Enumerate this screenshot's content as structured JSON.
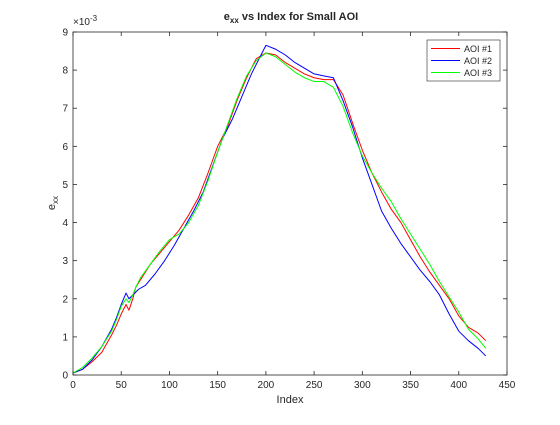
{
  "chart_data": {
    "type": "line",
    "title_main": "e",
    "title_sub": "xx",
    "title_rest": " vs Index for Small AOI",
    "xlabel": "Index",
    "ylabel_main": "e",
    "ylabel_sub": "xx",
    "y_exponent_prefix": "×10",
    "y_exponent_power": "-3",
    "xlim": [
      0,
      450
    ],
    "ylim": [
      0,
      9
    ],
    "xticks": [
      0,
      50,
      100,
      150,
      200,
      250,
      300,
      350,
      400,
      450
    ],
    "yticks": [
      0,
      1,
      2,
      3,
      4,
      5,
      6,
      7,
      8,
      9
    ],
    "xtick_labels": [
      "0",
      "50",
      "100",
      "150",
      "200",
      "250",
      "300",
      "350",
      "400",
      "450"
    ],
    "ytick_labels": [
      "0",
      "1",
      "2",
      "3",
      "4",
      "5",
      "6",
      "7",
      "8",
      "9"
    ],
    "grid": false,
    "legend_position": "top-right",
    "series": [
      {
        "name": "AOI #1",
        "color": "#ff0000",
        "points": [
          [
            0,
            0.05
          ],
          [
            10,
            0.15
          ],
          [
            20,
            0.35
          ],
          [
            30,
            0.6
          ],
          [
            40,
            1.05
          ],
          [
            45,
            1.3
          ],
          [
            50,
            1.6
          ],
          [
            55,
            1.85
          ],
          [
            58,
            1.7
          ],
          [
            62,
            2.0
          ],
          [
            65,
            2.3
          ],
          [
            70,
            2.5
          ],
          [
            80,
            2.9
          ],
          [
            90,
            3.2
          ],
          [
            100,
            3.5
          ],
          [
            110,
            3.8
          ],
          [
            120,
            4.2
          ],
          [
            130,
            4.65
          ],
          [
            140,
            5.3
          ],
          [
            150,
            6.0
          ],
          [
            160,
            6.5
          ],
          [
            170,
            7.2
          ],
          [
            180,
            7.8
          ],
          [
            190,
            8.3
          ],
          [
            200,
            8.45
          ],
          [
            210,
            8.4
          ],
          [
            220,
            8.2
          ],
          [
            230,
            8.05
          ],
          [
            240,
            7.9
          ],
          [
            250,
            7.8
          ],
          [
            260,
            7.75
          ],
          [
            270,
            7.75
          ],
          [
            280,
            7.35
          ],
          [
            290,
            6.6
          ],
          [
            300,
            5.9
          ],
          [
            310,
            5.3
          ],
          [
            320,
            4.8
          ],
          [
            330,
            4.35
          ],
          [
            340,
            4.0
          ],
          [
            350,
            3.55
          ],
          [
            360,
            3.1
          ],
          [
            370,
            2.7
          ],
          [
            380,
            2.35
          ],
          [
            390,
            2.0
          ],
          [
            400,
            1.55
          ],
          [
            410,
            1.25
          ],
          [
            420,
            1.1
          ],
          [
            428,
            0.9
          ]
        ]
      },
      {
        "name": "AOI #2",
        "color": "#0000ff",
        "points": [
          [
            0,
            0.05
          ],
          [
            10,
            0.15
          ],
          [
            20,
            0.4
          ],
          [
            30,
            0.75
          ],
          [
            40,
            1.2
          ],
          [
            45,
            1.5
          ],
          [
            50,
            1.85
          ],
          [
            55,
            2.15
          ],
          [
            58,
            2.0
          ],
          [
            62,
            2.1
          ],
          [
            68,
            2.25
          ],
          [
            75,
            2.35
          ],
          [
            85,
            2.65
          ],
          [
            95,
            3.0
          ],
          [
            105,
            3.4
          ],
          [
            115,
            3.85
          ],
          [
            125,
            4.3
          ],
          [
            135,
            4.8
          ],
          [
            145,
            5.5
          ],
          [
            155,
            6.2
          ],
          [
            165,
            6.7
          ],
          [
            175,
            7.3
          ],
          [
            185,
            7.9
          ],
          [
            195,
            8.4
          ],
          [
            200,
            8.65
          ],
          [
            210,
            8.55
          ],
          [
            220,
            8.4
          ],
          [
            230,
            8.2
          ],
          [
            240,
            8.05
          ],
          [
            250,
            7.9
          ],
          [
            260,
            7.85
          ],
          [
            270,
            7.8
          ],
          [
            280,
            7.2
          ],
          [
            290,
            6.5
          ],
          [
            300,
            5.7
          ],
          [
            310,
            5.0
          ],
          [
            320,
            4.3
          ],
          [
            330,
            3.85
          ],
          [
            340,
            3.45
          ],
          [
            350,
            3.1
          ],
          [
            360,
            2.75
          ],
          [
            370,
            2.45
          ],
          [
            380,
            2.1
          ],
          [
            390,
            1.6
          ],
          [
            400,
            1.15
          ],
          [
            410,
            0.9
          ],
          [
            420,
            0.7
          ],
          [
            428,
            0.5
          ]
        ]
      },
      {
        "name": "AOI #3",
        "color": "#00ff00",
        "points": [
          [
            0,
            0.05
          ],
          [
            10,
            0.2
          ],
          [
            20,
            0.45
          ],
          [
            30,
            0.75
          ],
          [
            40,
            1.15
          ],
          [
            45,
            1.45
          ],
          [
            50,
            1.8
          ],
          [
            55,
            2.0
          ],
          [
            58,
            1.9
          ],
          [
            62,
            2.1
          ],
          [
            66,
            2.35
          ],
          [
            70,
            2.55
          ],
          [
            80,
            2.9
          ],
          [
            90,
            3.25
          ],
          [
            100,
            3.55
          ],
          [
            110,
            3.7
          ],
          [
            120,
            4.0
          ],
          [
            130,
            4.45
          ],
          [
            140,
            5.1
          ],
          [
            150,
            5.85
          ],
          [
            160,
            6.55
          ],
          [
            170,
            7.25
          ],
          [
            180,
            7.85
          ],
          [
            190,
            8.25
          ],
          [
            200,
            8.45
          ],
          [
            210,
            8.35
          ],
          [
            220,
            8.15
          ],
          [
            230,
            7.95
          ],
          [
            240,
            7.8
          ],
          [
            250,
            7.7
          ],
          [
            260,
            7.7
          ],
          [
            270,
            7.55
          ],
          [
            280,
            7.05
          ],
          [
            290,
            6.35
          ],
          [
            300,
            5.75
          ],
          [
            310,
            5.3
          ],
          [
            320,
            4.9
          ],
          [
            330,
            4.55
          ],
          [
            340,
            4.1
          ],
          [
            350,
            3.7
          ],
          [
            360,
            3.3
          ],
          [
            370,
            2.9
          ],
          [
            380,
            2.45
          ],
          [
            390,
            2.05
          ],
          [
            400,
            1.65
          ],
          [
            410,
            1.2
          ],
          [
            420,
            0.95
          ],
          [
            428,
            0.7
          ]
        ]
      }
    ]
  }
}
